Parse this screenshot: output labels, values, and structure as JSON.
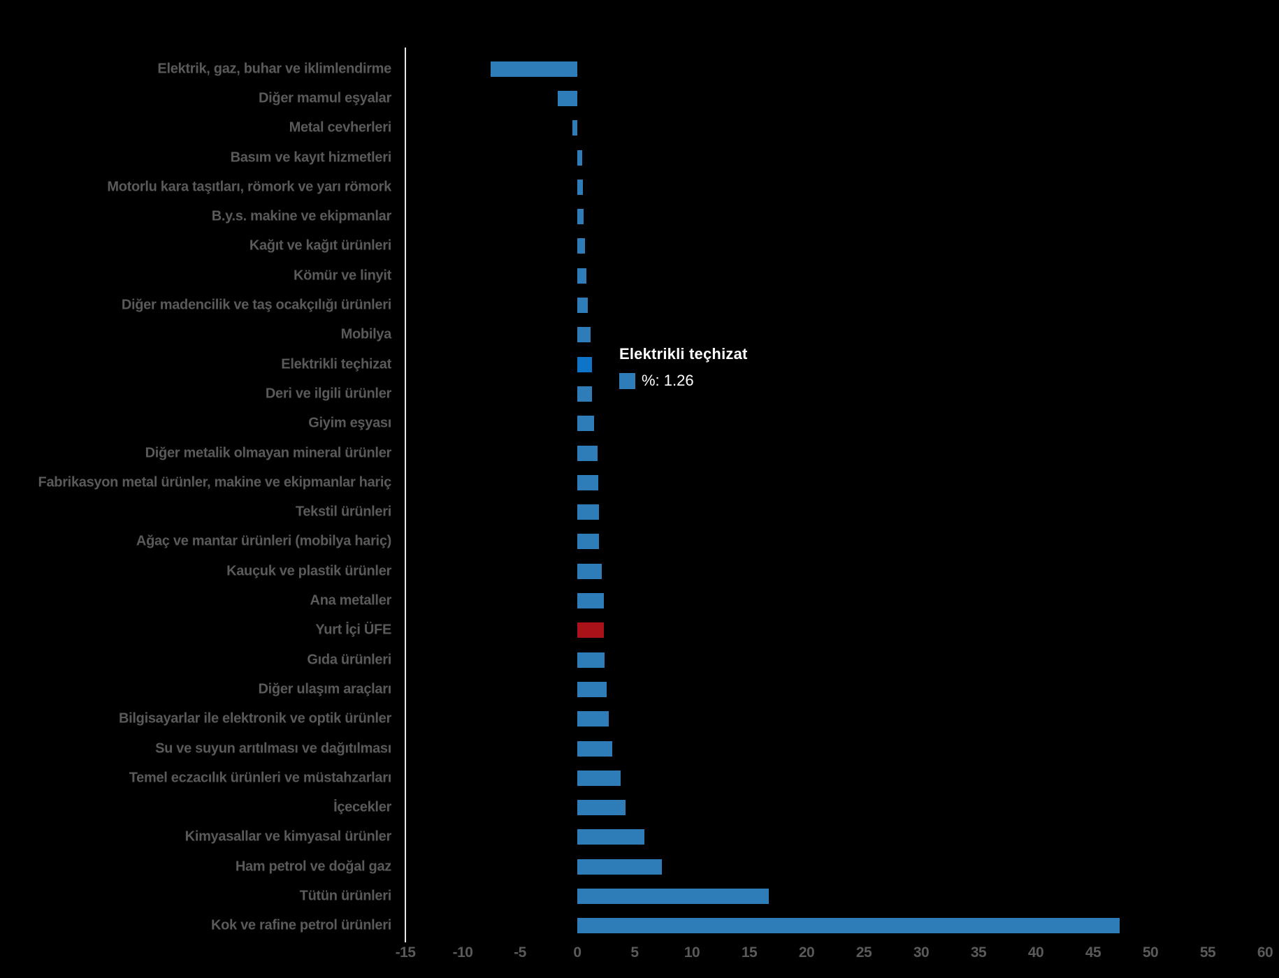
{
  "chart_data": {
    "type": "bar",
    "orientation": "horizontal",
    "title": "",
    "xlabel": "",
    "ylabel": "",
    "xlim": [
      -15,
      60
    ],
    "x_ticks": [
      -15,
      -10,
      -5,
      0,
      5,
      10,
      15,
      20,
      25,
      30,
      35,
      40,
      45,
      50,
      55,
      60
    ],
    "grid": false,
    "legend_position": "none",
    "sort_order": "ascending",
    "categories": [
      "Elektrik, gaz, buhar ve iklimlendirme",
      "Diğer mamul eşyalar",
      "Metal cevherleri",
      "Basım ve kayıt hizmetleri",
      "Motorlu kara taşıtları, römork ve yarı römork",
      "B.y.s. makine ve ekipmanlar",
      "Kağıt ve kağıt ürünleri",
      "Kömür ve linyit",
      "Diğer madencilik ve taş ocakçılığı ürünleri",
      "Mobilya",
      "Elektrikli teçhizat",
      "Deri ve ilgili ürünler",
      "Giyim eşyası",
      "Diğer metalik olmayan mineral ürünler",
      "Fabrikasyon metal ürünler, makine ve ekipmanlar hariç",
      "Tekstil ürünleri",
      "Ağaç ve mantar ürünleri (mobilya hariç)",
      "Kauçuk ve plastik ürünler",
      "Ana metaller",
      "Yurt İçi ÜFE",
      "Gıda ürünleri",
      "Diğer ulaşım araçları",
      "Bilgisayarlar ile elektronik ve optik ürünler",
      "Su ve suyun arıtılması ve dağıtılması",
      "Temel eczacılık ürünleri ve müstahzarları",
      "İçecekler",
      "Kimyasallar ve kimyasal ürünler",
      "Ham petrol ve doğal gaz",
      "Tütün ürünleri",
      "Kok ve rafine petrol ürünleri"
    ],
    "values": [
      -7.58,
      -1.68,
      -0.43,
      0.41,
      0.51,
      0.57,
      0.66,
      0.78,
      0.91,
      1.18,
      1.26,
      1.3,
      1.46,
      1.77,
      1.81,
      1.89,
      1.9,
      2.13,
      2.3,
      2.34,
      2.4,
      2.58,
      2.73,
      3.03,
      3.8,
      4.19,
      5.87,
      7.36,
      16.73,
      47.33
    ],
    "colors": {
      "bar_default": "#2E7CB8",
      "bar_hovered": "#0E74C8",
      "bar_emphasis": "#AA121A",
      "axis_line": "#e8e8e8",
      "label_text": "#5a5a5a",
      "background": "#000000"
    },
    "hovered_category": "Elektrikli teçhizat",
    "emphasis_category": "Yurt İçi ÜFE"
  },
  "tooltip": {
    "title": "Elektrikli teçhizat",
    "value_label": "%: 1.26",
    "swatch_color": "#2E7CB8"
  }
}
